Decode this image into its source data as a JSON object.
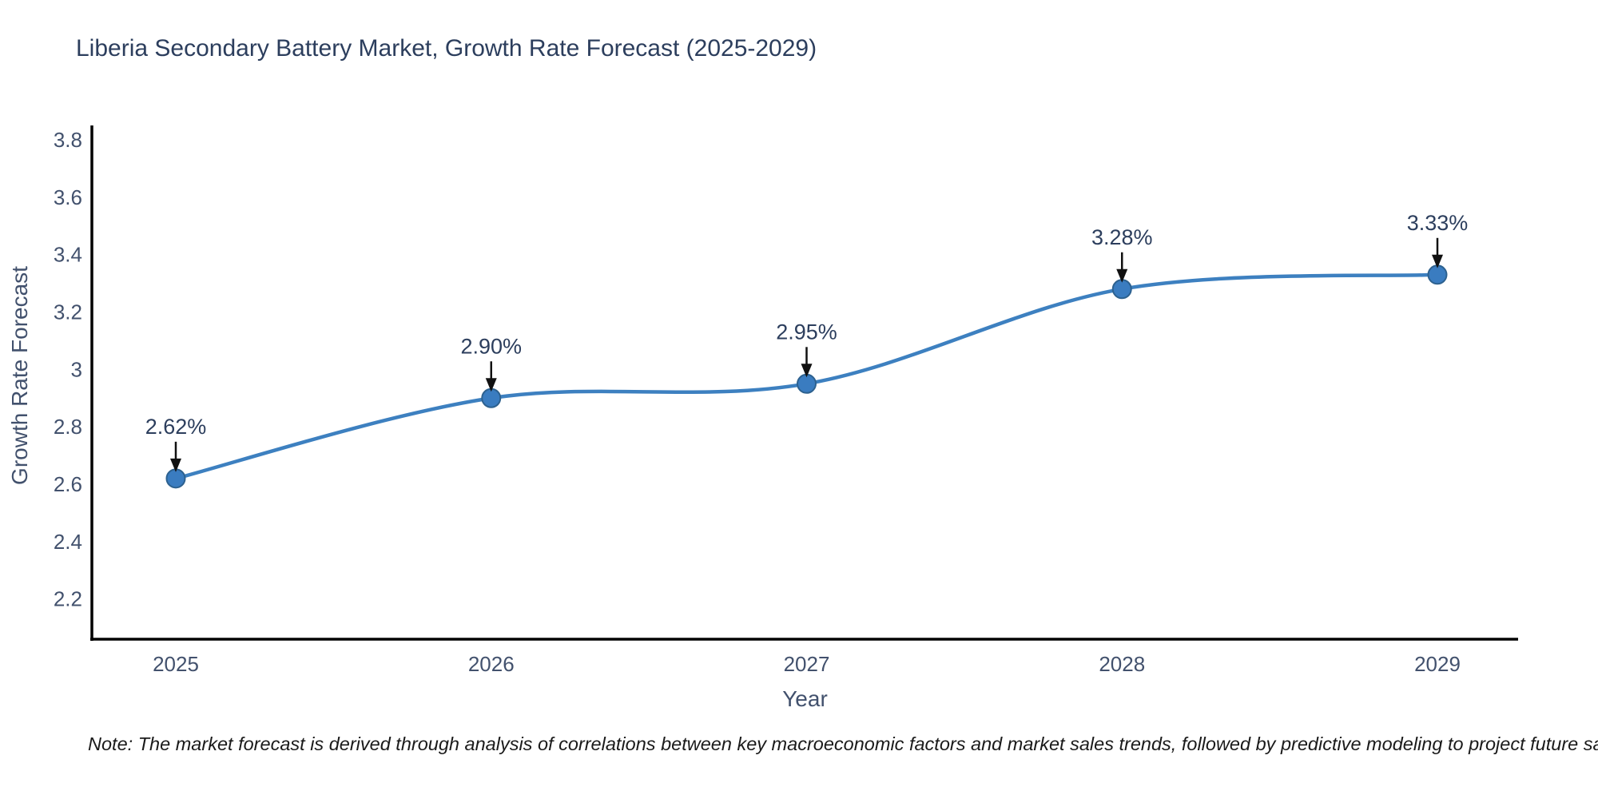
{
  "title": "Liberia Secondary Battery Market, Growth Rate Forecast (2025-2029)",
  "note": "Note: The market forecast is derived through analysis of correlations between key macroeconomic factors and market sales trends, followed by predictive modeling to project future sales",
  "chart_data": {
    "type": "line",
    "title": "Liberia Secondary Battery Market, Growth Rate Forecast (2025-2029)",
    "x": [
      2025,
      2026,
      2027,
      2028,
      2029
    ],
    "values": [
      2.62,
      2.9,
      2.95,
      3.28,
      3.33
    ],
    "point_labels": [
      "2.62%",
      "2.90%",
      "2.95%",
      "3.28%",
      "3.33%"
    ],
    "series_name": "Growth Rate Forecast",
    "xlabel": "Year",
    "ylabel": "Growth Rate Forecast",
    "x_tick_labels": [
      "2025",
      "2026",
      "2027",
      "2028",
      "2029"
    ],
    "y_ticks": [
      2.2,
      2.4,
      2.6,
      2.8,
      3,
      3.2,
      3.4,
      3.6,
      3.8
    ],
    "y_tick_labels": [
      "2.2",
      "2.4",
      "2.6",
      "2.8",
      "3",
      "3.2",
      "3.4",
      "3.6",
      "3.8"
    ],
    "ylim": [
      2.06,
      3.85
    ],
    "grid": false,
    "legend": null,
    "line_shape": "spline",
    "marker": "circle",
    "annotation_arrows": true,
    "colors": {
      "line": "#3d80c0",
      "marker_fill": "#3a7cc0",
      "marker_edge": "#2d618f",
      "arrow": "#111111",
      "title_text": "#2c3e5d",
      "axis_text": "#42516d",
      "axis_line": "#000000",
      "note_text": "#1a1a1a"
    }
  }
}
